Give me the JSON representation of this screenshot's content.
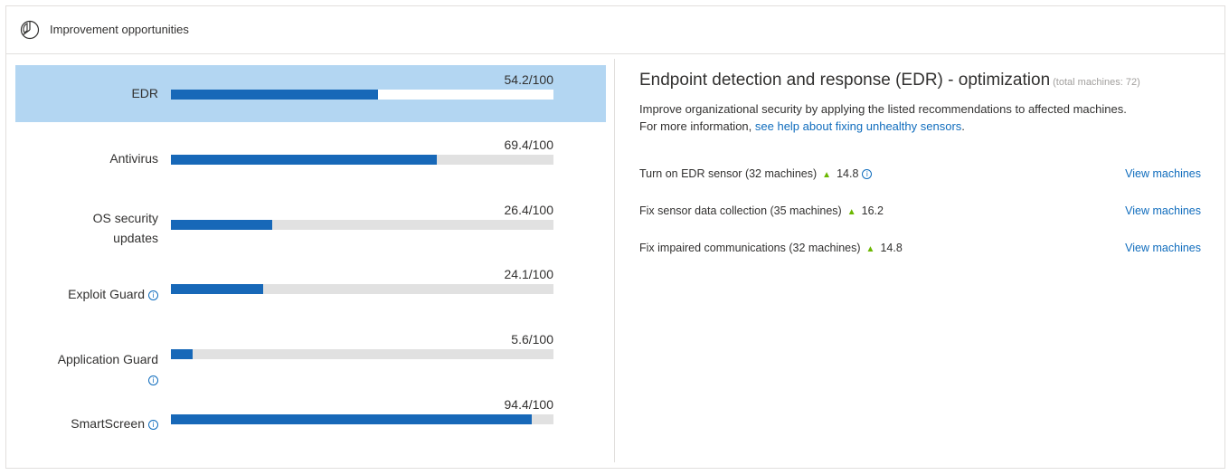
{
  "header": {
    "title": "Improvement opportunities",
    "icon": "pie-chart-icon"
  },
  "categories": [
    {
      "label": "EDR",
      "score": "54.2/100",
      "value": 54.2,
      "selected": true,
      "info": false
    },
    {
      "label": "Antivirus",
      "score": "69.4/100",
      "value": 69.4,
      "selected": false,
      "info": false
    },
    {
      "label_line1": "OS security",
      "label_line2": "updates",
      "score": "26.4/100",
      "value": 26.4,
      "selected": false,
      "info": false
    },
    {
      "label": "Exploit Guard",
      "score": "24.1/100",
      "value": 24.1,
      "selected": false,
      "info": true
    },
    {
      "label": "Application Guard",
      "score": "5.6/100",
      "value": 5.6,
      "selected": false,
      "info": true
    },
    {
      "label": "SmartScreen",
      "score": "94.4/100",
      "value": 94.4,
      "selected": false,
      "info": true
    }
  ],
  "detail": {
    "title": "Endpoint detection and response (EDR) - optimization",
    "subtitle": "(total machines: 72)",
    "description_line1": "Improve organizational security by applying the listed recommendations to affected machines.",
    "description_prefix": "For more information,",
    "description_link": "see help about fixing unhealthy sensors",
    "description_suffix": ".",
    "recommendations": [
      {
        "text": "Turn on EDR sensor (32 machines)",
        "delta": "14.8",
        "info": true,
        "action": "View machines"
      },
      {
        "text": "Fix sensor data collection (35 machines)",
        "delta": "16.2",
        "info": false,
        "action": "View machines"
      },
      {
        "text": "Fix impaired communications (32 machines)",
        "delta": "14.8",
        "info": false,
        "action": "View machines"
      }
    ]
  },
  "colors": {
    "bar_fill": "#1768b8",
    "bar_track": "#e1e1e1",
    "selected_row": "#b3d6f2",
    "link": "#0f6cbd",
    "up_arrow": "#6bb700"
  },
  "info_glyph": "i"
}
